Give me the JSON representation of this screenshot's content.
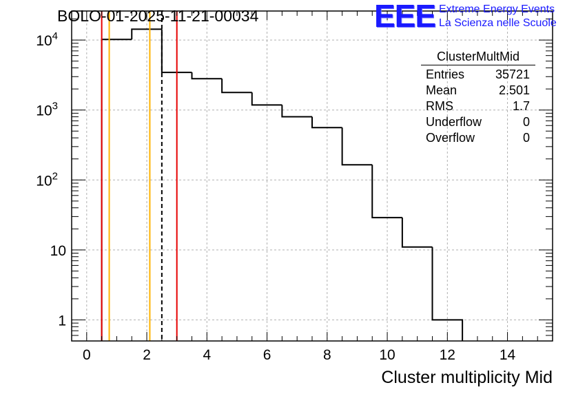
{
  "title": "BOLO-01-2025-11-21-00034",
  "logo": {
    "mark": "EEE",
    "line1": "Extreme Energy Events",
    "line2": "La Scienza nelle Scuole",
    "color": "#1a1aff"
  },
  "stats": {
    "name": "ClusterMultMid",
    "rows": [
      {
        "label": "Entries",
        "value": "35721"
      },
      {
        "label": "Mean",
        "value": "2.501"
      },
      {
        "label": "RMS",
        "value": "1.7"
      },
      {
        "label": "Underflow",
        "value": "0"
      },
      {
        "label": "Overflow",
        "value": "0"
      }
    ]
  },
  "chart_data": {
    "type": "histogram",
    "title": "BOLO-01-2025-11-21-00034",
    "xlabel": "Cluster multiplicity Mid",
    "ylabel": "",
    "yscale": "log",
    "xlim": [
      -0.5,
      15.5
    ],
    "ylim": [
      0.5,
      26000
    ],
    "grid": true,
    "x_ticks": [
      0,
      2,
      4,
      6,
      8,
      10,
      12,
      14
    ],
    "y_ticks": [
      {
        "value": 1,
        "label": "1"
      },
      {
        "value": 10,
        "label": "10"
      },
      {
        "value": 100,
        "label": "10",
        "exp": "2"
      },
      {
        "value": 1000,
        "label": "10",
        "exp": "3"
      },
      {
        "value": 10000,
        "label": "10",
        "exp": "4"
      }
    ],
    "bin_edges": [
      0.5,
      1.5,
      2.5,
      3.5,
      4.5,
      5.5,
      6.5,
      7.5,
      8.5,
      9.5,
      10.5,
      11.5,
      12.5
    ],
    "counts": [
      10200,
      14300,
      3450,
      2800,
      1780,
      1180,
      800,
      560,
      165,
      29,
      11,
      1
    ],
    "vertical_lines": [
      {
        "x": 0.5,
        "color": "#e60000",
        "style": "solid"
      },
      {
        "x": 0.75,
        "color": "#ffb300",
        "style": "solid"
      },
      {
        "x": 2.1,
        "color": "#ffb300",
        "style": "solid"
      },
      {
        "x": 2.5,
        "color": "#000000",
        "style": "dashed"
      },
      {
        "x": 3.0,
        "color": "#e60000",
        "style": "solid"
      }
    ]
  }
}
